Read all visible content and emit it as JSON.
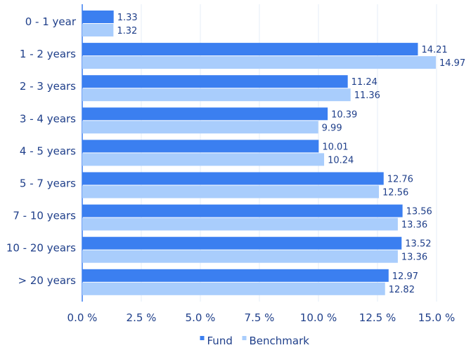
{
  "chart_data": {
    "type": "bar",
    "orientation": "horizontal",
    "categories": [
      "0 - 1 year",
      "1 - 2 years",
      "2 - 3 years",
      "3 - 4 years",
      "4 - 5 years",
      "5 - 7 years",
      "7 - 10 years",
      "10 - 20 years",
      "> 20 years"
    ],
    "series": [
      {
        "name": "Fund",
        "color": "#3b7ff0",
        "values": [
          1.33,
          14.21,
          11.24,
          10.39,
          10.01,
          12.76,
          13.56,
          13.52,
          12.97
        ],
        "labels": [
          "1.33",
          "14.21",
          "11.24",
          "10.39",
          "10.01",
          "12.76",
          "13.56",
          "13.52",
          "12.97"
        ]
      },
      {
        "name": "Benchmark",
        "color": "#a9cdfc",
        "values": [
          1.32,
          14.97,
          11.36,
          9.99,
          10.24,
          12.56,
          13.36,
          13.36,
          12.82
        ],
        "labels": [
          "1.32",
          "14.97",
          "11.36",
          "9.99",
          "10.24",
          "12.56",
          "13.36",
          "13.36",
          "12.82"
        ]
      }
    ],
    "xlim": [
      0,
      16
    ],
    "xticks": [
      0,
      2.5,
      5,
      7.5,
      10,
      12.5,
      15
    ],
    "xtick_labels": [
      "0.0 %",
      "2.5 %",
      "5.0 %",
      "7.5 %",
      "10.0 %",
      "12.5 %",
      "15.0 %"
    ],
    "grid": true,
    "legend_position": "bottom-center",
    "title": "",
    "xlabel": "",
    "ylabel": ""
  }
}
